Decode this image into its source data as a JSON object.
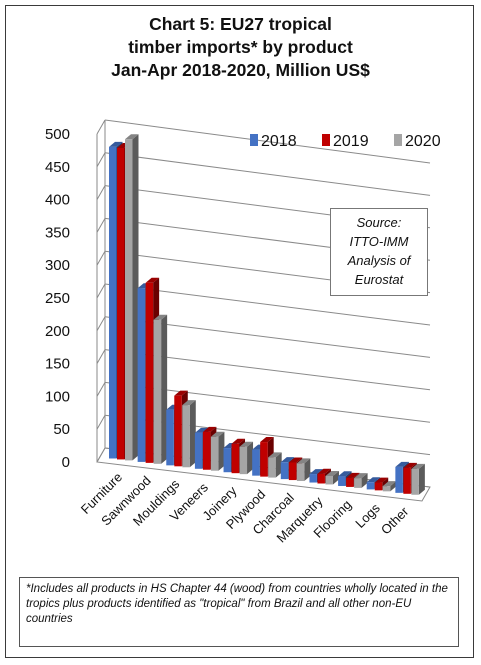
{
  "title_lines": [
    "Chart 5: EU27 tropical",
    "timber imports* by product",
    "Jan-Apr 2018-2020, Million US$"
  ],
  "source_lines": [
    "Source:",
    "ITTO-IMM",
    "Analysis of",
    "Eurostat"
  ],
  "footnote": "*Includes all products in HS Chapter 44 (wood) from countries wholly located in the tropics plus products identified as \"tropical\" from Brazil and all other non-EU countries",
  "chart_data": {
    "type": "bar",
    "title": "Chart 5: EU27 tropical timber imports* by product Jan-Apr 2018-2020, Million US$",
    "categories": [
      "Furniture",
      "Sawnwood",
      "Mouldings",
      "Veneers",
      "Joinery",
      "Plywood",
      "Charcoal",
      "Marquetry",
      "Flooring",
      "Logs",
      "Other"
    ],
    "series": [
      {
        "name": "2018",
        "color": "#4472c4",
        "values": [
          475,
          265,
          85,
          55,
          37,
          40,
          26,
          13,
          15,
          11,
          40
        ]
      },
      {
        "name": "2019",
        "color": "#c00000",
        "values": [
          475,
          275,
          108,
          58,
          45,
          53,
          27,
          15,
          14,
          12,
          40
        ]
      },
      {
        "name": "2020",
        "color": "#a5a5a5",
        "values": [
          490,
          220,
          95,
          52,
          42,
          31,
          27,
          13,
          15,
          8,
          40
        ]
      }
    ],
    "ylim": [
      0,
      500
    ],
    "yticks": [
      0,
      50,
      100,
      150,
      200,
      250,
      300,
      350,
      400,
      450,
      500
    ],
    "grid": true,
    "legend_position": "top-right"
  }
}
